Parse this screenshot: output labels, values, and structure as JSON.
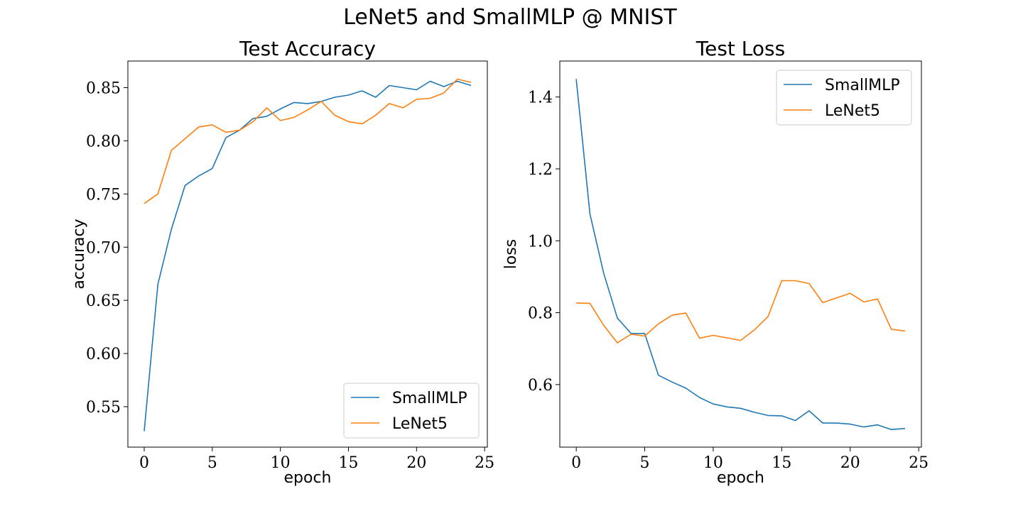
{
  "figure_title": "LeNet5 and SmallMLP @ MNIST",
  "colors": {
    "SmallMLP": "#1f77b4",
    "LeNet5": "#ff7f0e"
  },
  "chart_data": [
    {
      "type": "line",
      "title": "Test Accuracy",
      "xlabel": "epoch",
      "ylabel": "accuracy",
      "xlim": [
        -1.2,
        25.2
      ],
      "ylim": [
        0.512,
        0.875
      ],
      "xticks": [
        0,
        5,
        10,
        15,
        20,
        25
      ],
      "xtick_labels": [
        "0",
        "5",
        "10",
        "15",
        "20",
        "25"
      ],
      "yticks": [
        0.55,
        0.6,
        0.65,
        0.7,
        0.75,
        0.8,
        0.85
      ],
      "ytick_labels": [
        "0.55",
        "0.60",
        "0.65",
        "0.70",
        "0.75",
        "0.80",
        "0.85"
      ],
      "grid": false,
      "legend_position": "lower-right",
      "x": [
        0,
        1,
        2,
        3,
        4,
        5,
        6,
        7,
        8,
        9,
        10,
        11,
        12,
        13,
        14,
        15,
        16,
        17,
        18,
        19,
        20,
        21,
        22,
        23,
        24
      ],
      "series": [
        {
          "name": "SmallMLP",
          "values": [
            0.527,
            0.665,
            0.717,
            0.758,
            0.767,
            0.774,
            0.803,
            0.81,
            0.821,
            0.823,
            0.83,
            0.836,
            0.835,
            0.837,
            0.841,
            0.843,
            0.847,
            0.841,
            0.852,
            0.85,
            0.848,
            0.856,
            0.851,
            0.856,
            0.852
          ]
        },
        {
          "name": "LeNet5",
          "values": [
            0.741,
            0.75,
            0.791,
            0.802,
            0.813,
            0.815,
            0.808,
            0.81,
            0.818,
            0.831,
            0.819,
            0.822,
            0.829,
            0.837,
            0.824,
            0.818,
            0.816,
            0.824,
            0.835,
            0.831,
            0.839,
            0.84,
            0.845,
            0.858,
            0.855
          ]
        }
      ]
    },
    {
      "type": "line",
      "title": "Test Loss",
      "xlabel": "epoch",
      "ylabel": "loss",
      "xlim": [
        -1.2,
        25.2
      ],
      "ylim": [
        0.426,
        1.5
      ],
      "xticks": [
        0,
        5,
        10,
        15,
        20,
        25
      ],
      "xtick_labels": [
        "0",
        "5",
        "10",
        "15",
        "20",
        "25"
      ],
      "yticks": [
        0.6,
        0.8,
        1.0,
        1.2,
        1.4
      ],
      "ytick_labels": [
        "0.6",
        "0.8",
        "1.0",
        "1.2",
        "1.4"
      ],
      "grid": false,
      "legend_position": "upper-right",
      "x": [
        0,
        1,
        2,
        3,
        4,
        5,
        6,
        7,
        8,
        9,
        10,
        11,
        12,
        13,
        14,
        15,
        16,
        17,
        18,
        19,
        20,
        21,
        22,
        23,
        24
      ],
      "series": [
        {
          "name": "SmallMLP",
          "values": [
            1.45,
            1.075,
            0.91,
            0.785,
            0.742,
            0.742,
            0.626,
            0.607,
            0.59,
            0.564,
            0.546,
            0.538,
            0.534,
            0.523,
            0.514,
            0.513,
            0.5,
            0.527,
            0.493,
            0.493,
            0.49,
            0.482,
            0.488,
            0.475,
            0.478
          ]
        },
        {
          "name": "LeNet5",
          "values": [
            0.827,
            0.826,
            0.765,
            0.716,
            0.74,
            0.735,
            0.769,
            0.793,
            0.799,
            0.729,
            0.737,
            0.73,
            0.723,
            0.752,
            0.789,
            0.889,
            0.889,
            0.881,
            0.828,
            0.841,
            0.854,
            0.83,
            0.838,
            0.754,
            0.749
          ]
        }
      ]
    }
  ]
}
